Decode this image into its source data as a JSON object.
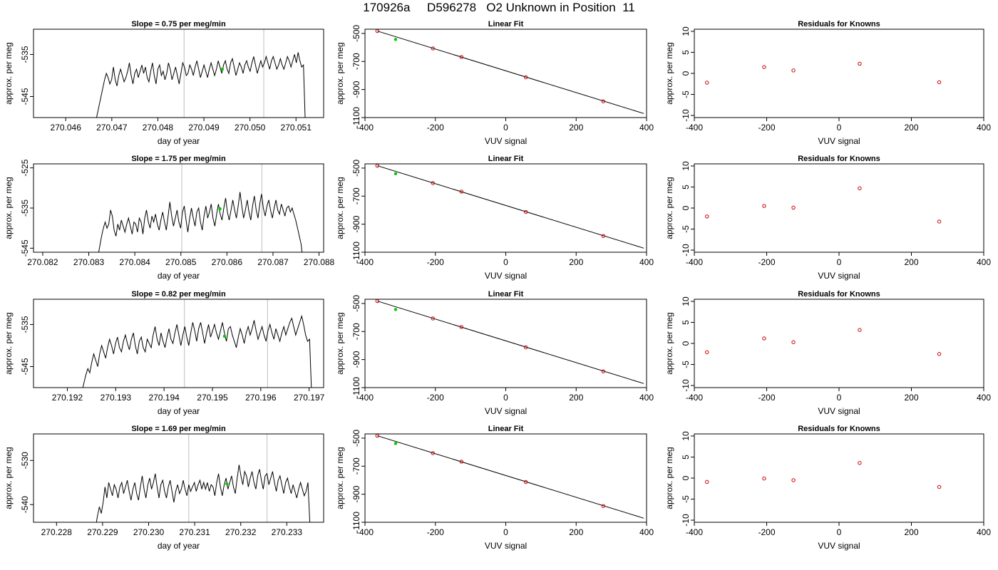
{
  "page_title": "170926a     D596278   O2 Unknown in Position  11",
  "colors": {
    "trace": "#000000",
    "reference_point": "#00cc00",
    "known_point": "#cc0000",
    "marker_line": "#c8c8c8",
    "fit_line": "#000000"
  },
  "chart_data": [
    {
      "type": "line",
      "row": 0,
      "panel": "trace",
      "title": "Slope =  0.75  per meg/min",
      "xlabel": "day of year",
      "ylabel": "approx. per meg",
      "xlim": [
        270.0453,
        270.0516
      ],
      "ylim": [
        -550,
        -529
      ],
      "xticks": [
        270.046,
        270.047,
        270.048,
        270.049,
        270.05,
        270.051
      ],
      "xtick_labels": [
        "270.046",
        "270.047",
        "270.048",
        "270.049",
        "270.050",
        "270.051"
      ],
      "yticks": [
        -545,
        -535
      ],
      "ytick_labels": [
        "-545",
        "-535"
      ],
      "x_start": 270.04665,
      "x_end": 270.0512,
      "vlines": [
        270.04857,
        270.0503
      ],
      "highlight_point": {
        "x": 270.0494,
        "y": -538.5
      },
      "trace_values": [
        -551,
        -549,
        -547,
        -545,
        -543,
        -541,
        -539.5,
        -540.5,
        -542,
        -541,
        -538,
        -541,
        -542.5,
        -540,
        -538.5,
        -540,
        -541.5,
        -540.5,
        -539,
        -537,
        -540,
        -542,
        -539.5,
        -538.5,
        -540.5,
        -539,
        -537.5,
        -539.5,
        -538,
        -540.5,
        -541.5,
        -539,
        -537,
        -540,
        -542,
        -538.5,
        -537.5,
        -540,
        -539,
        -541,
        -539.5,
        -537,
        -538.5,
        -541,
        -539.5,
        -538,
        -540,
        -542,
        -539.5,
        -537,
        -538,
        -540,
        -539.5,
        -537.5,
        -538.5,
        -540,
        -538,
        -536.5,
        -538.5,
        -540.5,
        -539,
        -537.5,
        -539,
        -540.5,
        -538.5,
        -537,
        -538.5,
        -540,
        -538.5,
        -536.5,
        -538,
        -539.5,
        -537.5,
        -536.5,
        -538.5,
        -539.5,
        -537,
        -536,
        -538,
        -540,
        -538.5,
        -537,
        -538,
        -539.5,
        -537.5,
        -536.5,
        -538,
        -539,
        -537,
        -535.5,
        -537.5,
        -539.5,
        -538,
        -536.5,
        -538,
        -537,
        -535.5,
        -537,
        -538.5,
        -536.5,
        -535.5,
        -537,
        -538.5,
        -537.5,
        -536,
        -537.5,
        -538.5,
        -537,
        -535.5,
        -536.5,
        -538,
        -536.5,
        -535,
        -537,
        -534.5,
        -536.5,
        -538,
        -537.5,
        -551
      ]
    },
    {
      "type": "line",
      "row": 0,
      "panel": "fit",
      "title": "Linear Fit",
      "xlabel": "VUV signal",
      "ylabel": "approx. per meg",
      "xlim": [
        -400,
        400
      ],
      "ylim": [
        -1100,
        -470
      ],
      "xticks": [
        -400,
        -200,
        0,
        200,
        400
      ],
      "xtick_labels": [
        "-400",
        "-200",
        "0",
        "200",
        "400"
      ],
      "yticks": [
        -500,
        -700,
        -900,
        -1100
      ],
      "ytick_labels": [
        "-500",
        "-700",
        "-900",
        "-1100"
      ],
      "fit_line": [
        [
          -365,
          -483
        ],
        [
          392,
          -1071
        ]
      ],
      "known_points": [
        [
          -365,
          -483
        ],
        [
          -207,
          -607
        ],
        [
          -126,
          -668
        ],
        [
          57,
          -813
        ],
        [
          277,
          -984
        ]
      ],
      "reference_point": [
        -313,
        -543
      ]
    },
    {
      "type": "scatter",
      "row": 0,
      "panel": "residuals",
      "title": "Residuals for Knowns",
      "xlabel": "VUV signal",
      "ylabel": "approx. per meg",
      "xlim": [
        -400,
        400
      ],
      "ylim": [
        -10.5,
        10.5
      ],
      "xticks": [
        -400,
        -200,
        0,
        200,
        400
      ],
      "xtick_labels": [
        "-400",
        "-200",
        "0",
        "200",
        "400"
      ],
      "yticks": [
        10,
        5,
        0,
        -5,
        -10
      ],
      "ytick_labels": [
        "10",
        "5",
        "0",
        "-5",
        "-10"
      ],
      "points": [
        [
          -365,
          -2.2
        ],
        [
          -207,
          1.5
        ],
        [
          -126,
          0.7
        ],
        [
          57,
          2.3
        ],
        [
          277,
          -2.1
        ]
      ]
    },
    {
      "type": "line",
      "row": 1,
      "panel": "trace",
      "title": "Slope =  1.75  per meg/min",
      "xlabel": "day of year",
      "ylabel": "approx. per meg",
      "xlim": [
        270.0818,
        270.0881
      ],
      "ylim": [
        -546,
        -524
      ],
      "xticks": [
        270.082,
        270.083,
        270.084,
        270.085,
        270.086,
        270.087,
        270.088
      ],
      "xtick_labels": [
        "270.082",
        "270.083",
        "270.084",
        "270.085",
        "270.086",
        "270.087",
        "270.088"
      ],
      "yticks": [
        -545,
        -535,
        -525
      ],
      "ytick_labels": [
        "-545",
        "-535",
        "-525"
      ],
      "x_start": 270.0832,
      "x_end": 270.08765,
      "vlines": [
        270.08502,
        270.08676
      ],
      "highlight_point": {
        "x": 270.08585,
        "y": -535.2
      },
      "trace_values": [
        -547,
        -544.5,
        -542,
        -540,
        -538.5,
        -540,
        -539,
        -535.5,
        -537,
        -540.5,
        -542,
        -539,
        -540.5,
        -538,
        -539.5,
        -541,
        -539,
        -537.5,
        -539.5,
        -541.5,
        -538.5,
        -539,
        -541,
        -537.5,
        -538.5,
        -541.5,
        -537.5,
        -535.5,
        -538.5,
        -540,
        -537,
        -538.5,
        -536.5,
        -539,
        -540.5,
        -538,
        -536,
        -538.5,
        -540.5,
        -537,
        -533.5,
        -537,
        -539.5,
        -537.5,
        -535.5,
        -538.5,
        -540,
        -536,
        -534.5,
        -538,
        -541,
        -537.5,
        -535,
        -537.5,
        -539.5,
        -536,
        -535,
        -538.5,
        -540.5,
        -537,
        -534.5,
        -537.5,
        -536,
        -534,
        -537.5,
        -539.5,
        -536.5,
        -534,
        -536.5,
        -538,
        -535,
        -532.5,
        -536,
        -538,
        -535.5,
        -533,
        -535.5,
        -537.5,
        -534.5,
        -531,
        -534.5,
        -537.5,
        -535.5,
        -533,
        -536,
        -538,
        -534.5,
        -532,
        -535.5,
        -537.5,
        -534,
        -531.5,
        -535,
        -537,
        -534.5,
        -533,
        -535.5,
        -537.5,
        -535,
        -533,
        -535.5,
        -536.5,
        -534,
        -535.5,
        -537,
        -535,
        -534.5,
        -536,
        -535,
        -536.5,
        -538,
        -540,
        -542,
        -544,
        -548
      ]
    },
    {
      "type": "line",
      "row": 1,
      "panel": "fit",
      "title": "Linear Fit",
      "xlabel": "VUV signal",
      "ylabel": "approx. per meg",
      "xlim": [
        -400,
        400
      ],
      "ylim": [
        -1100,
        -470
      ],
      "xticks": [
        -400,
        -200,
        0,
        200,
        400
      ],
      "xtick_labels": [
        "-400",
        "-200",
        "0",
        "200",
        "400"
      ],
      "yticks": [
        -500,
        -700,
        -900,
        -1100
      ],
      "ytick_labels": [
        "-500",
        "-700",
        "-900",
        "-1100"
      ],
      "fit_line": [
        [
          -365,
          -483
        ],
        [
          392,
          -1071
        ]
      ],
      "known_points": [
        [
          -365,
          -483
        ],
        [
          -207,
          -607
        ],
        [
          -126,
          -668
        ],
        [
          57,
          -813
        ],
        [
          277,
          -984
        ]
      ],
      "reference_point": [
        -313,
        -540
      ]
    },
    {
      "type": "scatter",
      "row": 1,
      "panel": "residuals",
      "title": "Residuals for Knowns",
      "xlabel": "VUV signal",
      "ylabel": "approx. per meg",
      "xlim": [
        -400,
        400
      ],
      "ylim": [
        -10.5,
        10.5
      ],
      "xticks": [
        -400,
        -200,
        0,
        200,
        400
      ],
      "xtick_labels": [
        "-400",
        "-200",
        "0",
        "200",
        "400"
      ],
      "yticks": [
        10,
        5,
        0,
        -5,
        -10
      ],
      "ytick_labels": [
        "10",
        "5",
        "0",
        "-5",
        "-10"
      ],
      "points": [
        [
          -365,
          -2.0
        ],
        [
          -207,
          0.5
        ],
        [
          -126,
          0.1
        ],
        [
          57,
          4.7
        ],
        [
          277,
          -3.2
        ]
      ]
    },
    {
      "type": "line",
      "row": 2,
      "panel": "trace",
      "title": "Slope =  0.82  per meg/min",
      "xlabel": "day of year",
      "ylabel": "approx. per meg",
      "xlim": [
        270.1913,
        270.1973
      ],
      "ylim": [
        -550,
        -529
      ],
      "xticks": [
        270.192,
        270.193,
        270.194,
        270.195,
        270.196,
        270.197
      ],
      "xtick_labels": [
        "270.192",
        "270.193",
        "270.194",
        "270.195",
        "270.196",
        "270.197"
      ],
      "yticks": [
        -545,
        -535
      ],
      "ytick_labels": [
        "-545",
        "-535"
      ],
      "x_start": 270.1923,
      "x_end": 270.19705,
      "vlines": [
        270.19442,
        270.19614
      ],
      "highlight_point": {
        "x": 270.19525,
        "y": -537.8
      },
      "trace_values": [
        -551,
        -549,
        -547,
        -545.5,
        -546.5,
        -544,
        -542,
        -543.5,
        -545,
        -542,
        -540,
        -541.5,
        -543,
        -540.5,
        -538.5,
        -540,
        -542,
        -539.5,
        -538,
        -540.5,
        -541.5,
        -539,
        -537.5,
        -539.5,
        -541,
        -538.5,
        -537,
        -540,
        -542,
        -539,
        -538,
        -540.5,
        -541.5,
        -538.5,
        -539.5,
        -540.5,
        -537.5,
        -535.5,
        -538.5,
        -540,
        -537,
        -539,
        -540.5,
        -538,
        -536,
        -538.5,
        -539.5,
        -537,
        -535,
        -537.5,
        -540,
        -537.5,
        -535.5,
        -538,
        -540,
        -537,
        -534.5,
        -536.5,
        -539,
        -536,
        -534.5,
        -537,
        -539.5,
        -537,
        -535,
        -538,
        -536.5,
        -535,
        -537,
        -538.5,
        -536.5,
        -534.5,
        -537,
        -539,
        -536,
        -535.5,
        -537.5,
        -539,
        -540.5,
        -538,
        -536,
        -537.5,
        -539.5,
        -537,
        -535.5,
        -537.5,
        -536,
        -534,
        -536.5,
        -538.5,
        -537,
        -535.5,
        -537.5,
        -539,
        -536.5,
        -535,
        -537,
        -538.5,
        -536,
        -537.5,
        -539,
        -537,
        -535.5,
        -537.5,
        -536,
        -534.5,
        -533.5,
        -535.5,
        -537.5,
        -536,
        -534.5,
        -533,
        -535,
        -537.5,
        -539,
        -538.5,
        -551
      ]
    },
    {
      "type": "line",
      "row": 2,
      "panel": "fit",
      "title": "Linear Fit",
      "xlabel": "VUV signal",
      "ylabel": "approx. per meg",
      "xlim": [
        -400,
        400
      ],
      "ylim": [
        -1100,
        -470
      ],
      "xticks": [
        -400,
        -200,
        0,
        200,
        400
      ],
      "xtick_labels": [
        "-400",
        "-200",
        "0",
        "200",
        "400"
      ],
      "yticks": [
        -500,
        -700,
        -900,
        -1100
      ],
      "ytick_labels": [
        "-500",
        "-700",
        "-900",
        "-1100"
      ],
      "fit_line": [
        [
          -365,
          -483
        ],
        [
          392,
          -1071
        ]
      ],
      "known_points": [
        [
          -365,
          -483
        ],
        [
          -207,
          -607
        ],
        [
          -126,
          -668
        ],
        [
          57,
          -813
        ],
        [
          277,
          -984
        ]
      ],
      "reference_point": [
        -313,
        -543
      ]
    },
    {
      "type": "scatter",
      "row": 2,
      "panel": "residuals",
      "title": "Residuals for Knowns",
      "xlabel": "VUV signal",
      "ylabel": "approx. per meg",
      "xlim": [
        -400,
        400
      ],
      "ylim": [
        -10.5,
        10.5
      ],
      "xticks": [
        -400,
        -200,
        0,
        200,
        400
      ],
      "xtick_labels": [
        "-400",
        "-200",
        "0",
        "200",
        "400"
      ],
      "yticks": [
        10,
        5,
        0,
        -5,
        -10
      ],
      "ytick_labels": [
        "10",
        "5",
        "0",
        "-5",
        "-10"
      ],
      "points": [
        [
          -365,
          -2.1
        ],
        [
          -207,
          1.2
        ],
        [
          -126,
          0.3
        ],
        [
          57,
          3.2
        ],
        [
          277,
          -2.5
        ]
      ]
    },
    {
      "type": "line",
      "row": 3,
      "panel": "trace",
      "title": "Slope =  1.69  per meg/min",
      "xlabel": "day of year",
      "ylabel": "approx. per meg",
      "xlim": [
        270.2275,
        270.2338
      ],
      "ylim": [
        -544,
        -524
      ],
      "xticks": [
        270.228,
        270.229,
        270.23,
        270.231,
        270.232,
        270.233
      ],
      "xtick_labels": [
        "270.228",
        "270.229",
        "270.230",
        "270.231",
        "270.232",
        "270.233"
      ],
      "yticks": [
        -540,
        -530
      ],
      "ytick_labels": [
        "-540",
        "-530"
      ],
      "x_start": 270.22885,
      "x_end": 270.2335,
      "vlines": [
        270.23087,
        270.23257
      ],
      "highlight_point": {
        "x": 270.2317,
        "y": -535.3
      },
      "trace_values": [
        -545,
        -542.5,
        -540.5,
        -542,
        -539.5,
        -536,
        -538.5,
        -535,
        -536.5,
        -538,
        -535.5,
        -536.5,
        -538.5,
        -536,
        -535,
        -537.5,
        -536,
        -534.5,
        -537,
        -539,
        -536.5,
        -535,
        -537.5,
        -539,
        -536,
        -533.5,
        -536.5,
        -538.5,
        -535.5,
        -534,
        -536.5,
        -535,
        -533,
        -536,
        -538.5,
        -535.5,
        -534.5,
        -537,
        -538.5,
        -536,
        -534.5,
        -537,
        -539.5,
        -537,
        -535.5,
        -537.5,
        -536.5,
        -534.5,
        -536.5,
        -538,
        -535.5,
        -537,
        -536,
        -535,
        -537,
        -535.5,
        -534.5,
        -536.5,
        -535,
        -536.5,
        -535,
        -537,
        -535.5,
        -536,
        -538,
        -535,
        -533,
        -536,
        -538,
        -535.5,
        -534,
        -536.5,
        -535,
        -533.5,
        -536,
        -537.5,
        -534,
        -531,
        -533.5,
        -535.5,
        -532.5,
        -533.5,
        -536,
        -534,
        -532.5,
        -535,
        -536.5,
        -533.5,
        -532,
        -534.5,
        -536.5,
        -533.5,
        -533,
        -535.5,
        -534,
        -532.5,
        -535,
        -537,
        -534.5,
        -533.5,
        -535.5,
        -537.5,
        -535,
        -534,
        -536,
        -537.5,
        -535.5,
        -537,
        -538.5,
        -536.5,
        -535,
        -536.5,
        -538,
        -537,
        -535,
        -544
      ]
    },
    {
      "type": "line",
      "row": 3,
      "panel": "fit",
      "title": "Linear Fit",
      "xlabel": "VUV signal",
      "ylabel": "approx. per meg",
      "xlim": [
        -400,
        400
      ],
      "ylim": [
        -1100,
        -470
      ],
      "xticks": [
        -400,
        -200,
        0,
        200,
        400
      ],
      "xtick_labels": [
        "-400",
        "-200",
        "0",
        "200",
        "400"
      ],
      "yticks": [
        -500,
        -700,
        -900,
        -1100
      ],
      "ytick_labels": [
        "-500",
        "-700",
        "-900",
        "-1100"
      ],
      "fit_line": [
        [
          -365,
          -483
        ],
        [
          392,
          -1071
        ]
      ],
      "known_points": [
        [
          -365,
          -483
        ],
        [
          -207,
          -607
        ],
        [
          -126,
          -668
        ],
        [
          57,
          -813
        ],
        [
          277,
          -984
        ]
      ],
      "reference_point": [
        -313,
        -538
      ]
    },
    {
      "type": "scatter",
      "row": 3,
      "panel": "residuals",
      "title": "Residuals for Knowns",
      "xlabel": "VUV signal",
      "ylabel": "approx. per meg",
      "xlim": [
        -400,
        400
      ],
      "ylim": [
        -10.5,
        10.5
      ],
      "xticks": [
        -400,
        -200,
        0,
        200,
        400
      ],
      "xtick_labels": [
        "-400",
        "-200",
        "0",
        "200",
        "400"
      ],
      "yticks": [
        10,
        5,
        0,
        -5,
        -10
      ],
      "ytick_labels": [
        "10",
        "5",
        "0",
        "-5",
        "-10"
      ],
      "points": [
        [
          -365,
          -0.9
        ],
        [
          -207,
          -0.1
        ],
        [
          -126,
          -0.5
        ],
        [
          57,
          3.6
        ],
        [
          277,
          -2.1
        ]
      ]
    }
  ]
}
